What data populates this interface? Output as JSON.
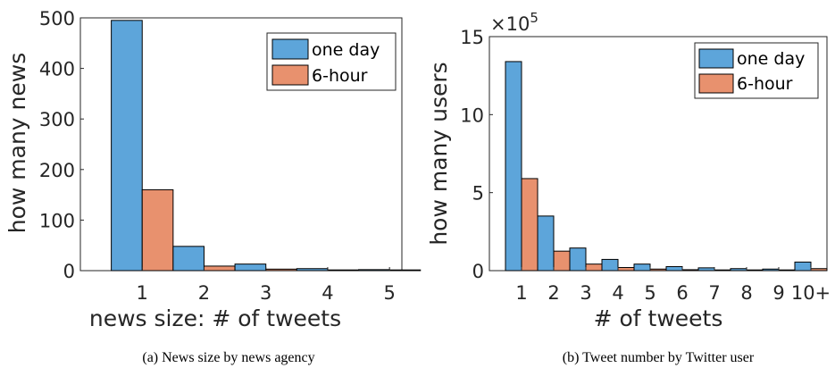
{
  "colors": {
    "one_day": "#5DA5DA",
    "six_hour": "#E8916E"
  },
  "chart_data": [
    {
      "type": "bar",
      "categories": [
        "1",
        "2",
        "3",
        "4",
        "5"
      ],
      "series": [
        {
          "name": "one day",
          "values": [
            495,
            48,
            13,
            4,
            2
          ]
        },
        {
          "name": "6-hour",
          "values": [
            160,
            9,
            3,
            1,
            1
          ]
        }
      ],
      "xlabel": "news size: # of tweets",
      "ylabel": "how many news",
      "ylim": [
        0,
        500
      ],
      "yticks": [
        "0",
        "100",
        "200",
        "300",
        "400",
        "500"
      ],
      "legend": "top-right",
      "caption": "(a) News size by news agency"
    },
    {
      "type": "bar",
      "categories": [
        "1",
        "2",
        "3",
        "4",
        "5",
        "6",
        "7",
        "8",
        "9",
        "10+"
      ],
      "series": [
        {
          "name": "one day",
          "values": [
            1340000,
            350000,
            145000,
            72000,
            42000,
            26000,
            18000,
            13000,
            10000,
            55000
          ]
        },
        {
          "name": "6-hour",
          "values": [
            590000,
            125000,
            42000,
            20000,
            10000,
            6000,
            4000,
            3000,
            2000,
            13000
          ]
        }
      ],
      "xlabel": "# of tweets",
      "ylabel": "how many users",
      "ylim": [
        0,
        1500000
      ],
      "yticks": [
        "0",
        "5",
        "10",
        "15"
      ],
      "y_exponent": {
        "base": "×10",
        "power": "5"
      },
      "legend": "top-right",
      "caption": "(b) Tweet number by Twitter user"
    }
  ]
}
